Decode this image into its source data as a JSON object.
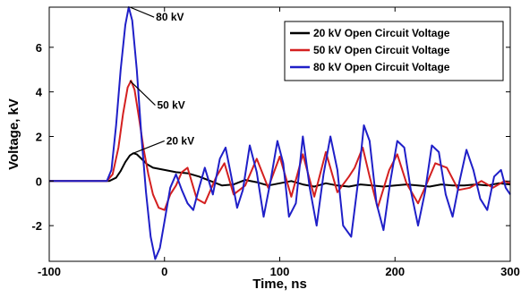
{
  "chart_data": {
    "type": "line",
    "xlabel": "Time, ns",
    "ylabel": "Voltage, kV",
    "xlim": [
      -100,
      300
    ],
    "ylim": [
      -3.6,
      7.8
    ],
    "xticks": [
      -100,
      0,
      100,
      200,
      300
    ],
    "yticks": [
      -2,
      0,
      2,
      4,
      6
    ],
    "grid": false,
    "legend_position": "top-right",
    "series": [
      {
        "name": "20 kV Open Circuit Voltage",
        "color": "#000000",
        "x": [
          -100,
          -48,
          -42,
          -38,
          -34,
          -30,
          -27,
          -24,
          -20,
          -15,
          -10,
          -5,
          0,
          5,
          10,
          20,
          30,
          40,
          50,
          60,
          70,
          80,
          90,
          100,
          110,
          120,
          130,
          140,
          150,
          160,
          170,
          180,
          190,
          200,
          210,
          220,
          230,
          240,
          250,
          260,
          270,
          280,
          290,
          300
        ],
        "y": [
          0.0,
          0.0,
          0.15,
          0.45,
          0.85,
          1.15,
          1.25,
          1.2,
          1.0,
          0.75,
          0.6,
          0.55,
          0.5,
          0.45,
          0.4,
          0.35,
          0.2,
          0.0,
          -0.2,
          -0.15,
          0.05,
          -0.05,
          -0.2,
          -0.1,
          0.0,
          -0.15,
          -0.25,
          -0.1,
          -0.2,
          -0.25,
          -0.15,
          -0.2,
          -0.25,
          -0.2,
          -0.15,
          -0.2,
          -0.25,
          -0.15,
          -0.2,
          -0.2,
          -0.15,
          -0.2,
          -0.1,
          -0.15
        ]
      },
      {
        "name": "50 kV Open Circuit Voltage",
        "color": "#d42020",
        "x": [
          -100,
          -50,
          -45,
          -40,
          -36,
          -32,
          -29,
          -26,
          -22,
          -18,
          -14,
          -10,
          -5,
          0,
          5,
          10,
          15,
          20,
          28,
          35,
          45,
          52,
          60,
          70,
          80,
          90,
          100,
          110,
          120,
          130,
          140,
          150,
          160,
          165,
          172,
          178,
          185,
          195,
          202,
          210,
          220,
          226,
          235,
          245,
          255,
          265,
          275,
          285,
          295,
          300
        ],
        "y": [
          0.0,
          0.0,
          0.3,
          1.5,
          3.0,
          4.2,
          4.5,
          4.1,
          2.8,
          1.4,
          0.3,
          -0.6,
          -1.2,
          -1.3,
          -0.6,
          -0.2,
          0.4,
          0.6,
          -0.8,
          -1.0,
          0.2,
          0.8,
          -0.6,
          -0.2,
          1.0,
          -0.3,
          1.1,
          -0.7,
          1.2,
          -0.7,
          1.3,
          -0.5,
          0.2,
          0.6,
          1.5,
          0.2,
          -1.2,
          0.5,
          1.2,
          -0.1,
          -1.0,
          -0.3,
          0.8,
          0.6,
          -0.4,
          -0.3,
          0.0,
          -0.3,
          0.0,
          -0.1
        ]
      },
      {
        "name": "80 kV Open Circuit Voltage",
        "color": "#1f1fc8",
        "x": [
          -100,
          -50,
          -46,
          -42,
          -38,
          -34,
          -31,
          -28,
          -24,
          -20,
          -16,
          -12,
          -8,
          -4,
          0,
          5,
          10,
          15,
          20,
          25,
          30,
          35,
          42,
          48,
          53,
          58,
          63,
          68,
          74,
          80,
          86,
          92,
          98,
          103,
          108,
          114,
          120,
          126,
          132,
          138,
          144,
          150,
          155,
          162,
          168,
          173,
          178,
          184,
          190,
          196,
          202,
          208,
          214,
          220,
          226,
          232,
          238,
          244,
          250,
          256,
          262,
          268,
          274,
          280,
          286,
          292,
          296,
          300
        ],
        "y": [
          0.0,
          0.0,
          0.5,
          2.5,
          5.0,
          7.0,
          7.8,
          7.2,
          5.0,
          2.0,
          -0.5,
          -2.5,
          -3.5,
          -3.0,
          -1.8,
          -0.3,
          0.3,
          -0.4,
          -1.0,
          -1.3,
          -0.3,
          0.6,
          -0.6,
          1.0,
          1.5,
          0.2,
          -1.2,
          -0.4,
          1.6,
          0.4,
          -1.6,
          0.0,
          1.8,
          0.8,
          -1.6,
          -1.0,
          2.0,
          -0.3,
          -2.0,
          0.3,
          2.0,
          0.5,
          -2.0,
          -2.5,
          0.0,
          2.5,
          1.8,
          -1.0,
          -2.2,
          0.0,
          1.8,
          1.5,
          -0.5,
          -2.0,
          -0.5,
          1.6,
          1.3,
          -0.6,
          -1.6,
          0.0,
          1.4,
          0.5,
          -0.8,
          -1.3,
          0.2,
          0.5,
          -0.3,
          -0.6
        ]
      }
    ],
    "annotations": [
      {
        "text": "80 kV",
        "x": -30,
        "y": 7.8,
        "tx": -9,
        "ty": 7.35
      },
      {
        "text": "50 kV",
        "x": -30,
        "y": 4.5,
        "tx": -8,
        "ty": 3.4
      },
      {
        "text": "20 kV",
        "x": -27,
        "y": 1.25,
        "tx": 0,
        "ty": 1.8
      }
    ]
  }
}
